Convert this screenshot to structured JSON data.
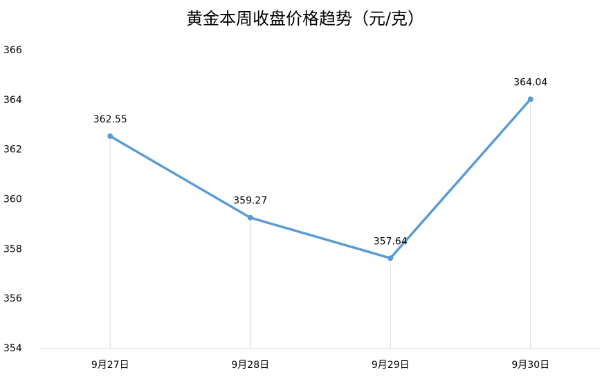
{
  "chart_data": {
    "type": "line",
    "title": "黄金本周收盘价格趋势（元/克）",
    "categories": [
      "9月27日",
      "9月28日",
      "9月29日",
      "9月30日"
    ],
    "values": [
      362.55,
      359.27,
      357.64,
      364.04
    ],
    "color": "#5b9bd5",
    "ylim": [
      354,
      366
    ],
    "yticks": [
      354,
      356,
      358,
      360,
      362,
      364,
      366
    ],
    "drop_lines": true,
    "grid": false
  }
}
